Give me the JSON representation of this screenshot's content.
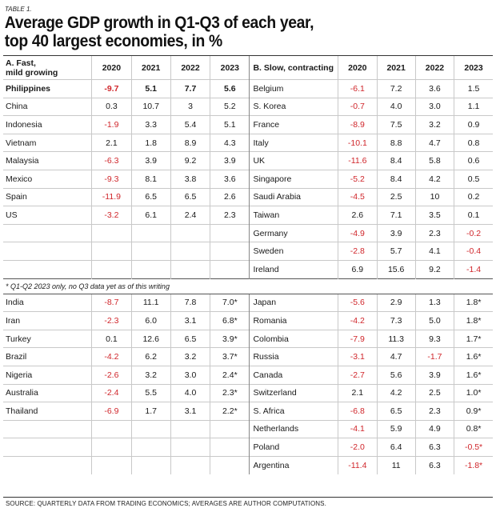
{
  "table_label": "TABLE 1.",
  "title_line1": "Average GDP growth in Q1-Q3 of each year,",
  "title_line2": "top 40 largest economies, in %",
  "header": {
    "a_line1": "A. Fast,",
    "a_line2": "mild growing",
    "b": "B. Slow, contracting",
    "years": [
      "2020",
      "2021",
      "2022",
      "2023"
    ]
  },
  "section1": {
    "a": [
      {
        "country": "Philippines",
        "values": [
          "-9.7",
          "5.1",
          "7.7",
          "5.6"
        ]
      },
      {
        "country": "China",
        "values": [
          "0.3",
          "10.7",
          "3",
          "5.2"
        ]
      },
      {
        "country": "Indonesia",
        "values": [
          "-1.9",
          "3.3",
          "5.4",
          "5.1"
        ]
      },
      {
        "country": "Vietnam",
        "values": [
          "2.1",
          "1.8",
          "8.9",
          "4.3"
        ]
      },
      {
        "country": "Malaysia",
        "values": [
          "-6.3",
          "3.9",
          "9.2",
          "3.9"
        ]
      },
      {
        "country": "Mexico",
        "values": [
          "-9.3",
          "8.1",
          "3.8",
          "3.6"
        ]
      },
      {
        "country": "Spain",
        "values": [
          "-11.9",
          "6.5",
          "6.5",
          "2.6"
        ]
      },
      {
        "country": "US",
        "values": [
          "-3.2",
          "6.1",
          "2.4",
          "2.3"
        ]
      }
    ],
    "b": [
      {
        "country": "Belgium",
        "values": [
          "-6.1",
          "7.2",
          "3.6",
          "1.5"
        ]
      },
      {
        "country": "S. Korea",
        "values": [
          "-0.7",
          "4.0",
          "3.0",
          "1.1"
        ]
      },
      {
        "country": "France",
        "values": [
          "-8.9",
          "7.5",
          "3.2",
          "0.9"
        ]
      },
      {
        "country": "Italy",
        "values": [
          "-10.1",
          "8.8",
          "4.7",
          "0.8"
        ]
      },
      {
        "country": "UK",
        "values": [
          "-11.6",
          "8.4",
          "5.8",
          "0.6"
        ]
      },
      {
        "country": "Singapore",
        "values": [
          "-5.2",
          "8.4",
          "4.2",
          "0.5"
        ]
      },
      {
        "country": "Saudi Arabia",
        "values": [
          "-4.5",
          "2.5",
          "10",
          "0.2"
        ]
      },
      {
        "country": "Taiwan",
        "values": [
          "2.6",
          "7.1",
          "3.5",
          "0.1"
        ]
      },
      {
        "country": "Germany",
        "values": [
          "-4.9",
          "3.9",
          "2.3",
          "-0.2"
        ]
      },
      {
        "country": "Sweden",
        "values": [
          "-2.8",
          "5.7",
          "4.1",
          "-0.4"
        ]
      },
      {
        "country": "Ireland",
        "values": [
          "6.9",
          "15.6",
          "9.2",
          "-1.4"
        ]
      }
    ]
  },
  "note": "* Q1-Q2 2023 only, no Q3 data yet as of this writing",
  "section2": {
    "a": [
      {
        "country": "India",
        "values": [
          "-8.7",
          "11.1",
          "7.8",
          "7.0*"
        ]
      },
      {
        "country": "Iran",
        "values": [
          "-2.3",
          "6.0",
          "3.1",
          "6.8*"
        ]
      },
      {
        "country": "Turkey",
        "values": [
          "0.1",
          "12.6",
          "6.5",
          "3.9*"
        ]
      },
      {
        "country": "Brazil",
        "values": [
          "-4.2",
          "6.2",
          "3.2",
          "3.7*"
        ]
      },
      {
        "country": "Nigeria",
        "values": [
          "-2.6",
          "3.2",
          "3.0",
          "2.4*"
        ]
      },
      {
        "country": "Australia",
        "values": [
          "-2.4",
          "5.5",
          "4.0",
          "2.3*"
        ]
      },
      {
        "country": "Thailand",
        "values": [
          "-6.9",
          "1.7",
          "3.1",
          "2.2*"
        ]
      }
    ],
    "b": [
      {
        "country": "Japan",
        "values": [
          "-5.6",
          "2.9",
          "1.3",
          "1.8*"
        ]
      },
      {
        "country": "Romania",
        "values": [
          "-4.2",
          "7.3",
          "5.0",
          "1.8*"
        ]
      },
      {
        "country": "Colombia",
        "values": [
          "-7.9",
          "11.3",
          "9.3",
          "1.7*"
        ]
      },
      {
        "country": "Russia",
        "values": [
          "-3.1",
          "4.7",
          "-1.7",
          "1.6*"
        ]
      },
      {
        "country": "Canada",
        "values": [
          "-2.7",
          "5.6",
          "3.9",
          "1.6*"
        ]
      },
      {
        "country": "Switzerland",
        "values": [
          "2.1",
          "4.2",
          "2.5",
          "1.0*"
        ]
      },
      {
        "country": "S. Africa",
        "values": [
          "-6.8",
          "6.5",
          "2.3",
          "0.9*"
        ]
      },
      {
        "country": "Netherlands",
        "values": [
          "-4.1",
          "5.9",
          "4.9",
          "0.8*"
        ]
      },
      {
        "country": "Poland",
        "values": [
          "-2.0",
          "6.4",
          "6.3",
          "-0.5*"
        ]
      },
      {
        "country": "Argentina",
        "values": [
          "-11.4",
          "11",
          "6.3",
          "-1.8*"
        ]
      }
    ]
  },
  "source": "SOURCE: QUARTERLY DATA FROM TRADING ECONOMICS; AVERAGES ARE AUTHOR COMPUTATIONS.",
  "colors": {
    "negative": "#d0262b",
    "text": "#1a1a1a",
    "rule": "#c9c9c9"
  }
}
